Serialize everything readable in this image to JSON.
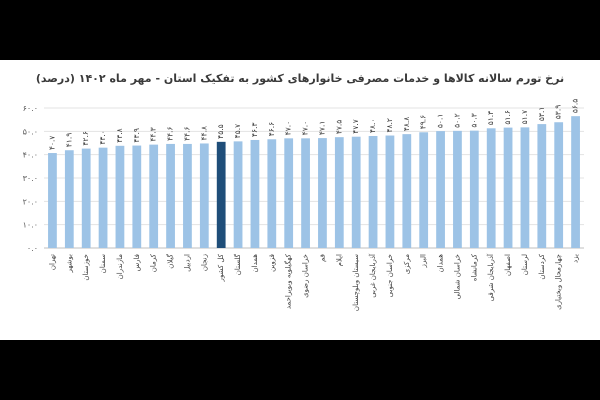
{
  "chart_data": {
    "type": "bar",
    "title": "نرخ تورم سالانه کالاها و خدمات مصرفی خانوارهای کشور به تفکیک استان - مهر ماه ۱۴۰۲ (درصد)",
    "xlabel": "",
    "ylabel": "",
    "ylim": [
      0,
      60
    ],
    "yticks": [
      0,
      10,
      20,
      30,
      40,
      50,
      60
    ],
    "ytick_labels": [
      "۰.۰",
      "۱۰.۰",
      "۲۰.۰",
      "۳۰.۰",
      "۴۰.۰",
      "۵۰.۰",
      "۶۰.۰"
    ],
    "grid": true,
    "legend": "none",
    "bar_color": "#9dc3e6",
    "highlight_color": "#1f4e79",
    "highlight_category": "کل کشور",
    "categories": [
      "تهران",
      "بوشهر",
      "خوزستان",
      "سمنان",
      "مازندران",
      "فارس",
      "کرمان",
      "گیلان",
      "اردبیل",
      "زنجان",
      "کل کشور",
      "گلستان",
      "همدان",
      "قزوین",
      "کهگیلویه وبویراحمد",
      "خراسان رضوی",
      "قم",
      "ایلام",
      "سیستان وبلوچستان",
      "آذربایجان غربی",
      "خراسان جنوبی",
      "مرکزی",
      "البرز",
      "همدان",
      "خراسان شمالی",
      "کرمانشاه",
      "آذربایجان شرقی",
      "اصفهان",
      "لرستان",
      "کردستان",
      "چهارمحال وبختیاری",
      "یزد"
    ],
    "values": [
      40.7,
      41.9,
      42.6,
      43.0,
      43.8,
      43.9,
      44.3,
      44.6,
      44.6,
      44.8,
      45.5,
      45.7,
      46.3,
      46.6,
      47.0,
      47.0,
      47.1,
      47.5,
      47.7,
      48.0,
      48.2,
      48.8,
      49.6,
      50.1,
      50.2,
      50.3,
      51.3,
      51.6,
      51.7,
      53.1,
      53.9,
      56.5
    ],
    "value_labels": [
      "۴۰.۷",
      "۴۱.۹",
      "۴۲.۶",
      "۴۳.۰",
      "۴۳.۸",
      "۴۳.۹",
      "۴۴.۳",
      "۴۴.۶",
      "۴۴.۶",
      "۴۴.۸",
      "۴۵.۵",
      "۴۵.۷",
      "۴۶.۳",
      "۴۶.۶",
      "۴۷.۰",
      "۴۷.۰",
      "۴۷.۱",
      "۴۷.۵",
      "۴۷.۷",
      "۴۸.۰",
      "۴۸.۲",
      "۴۸.۸",
      "۴۹.۶",
      "۵۰.۱",
      "۵۰.۲",
      "۵۰.۳",
      "۵۱.۳",
      "۵۱.۶",
      "۵۱.۷",
      "۵۳.۱",
      "۵۳.۹",
      "۵۶.۵"
    ]
  }
}
